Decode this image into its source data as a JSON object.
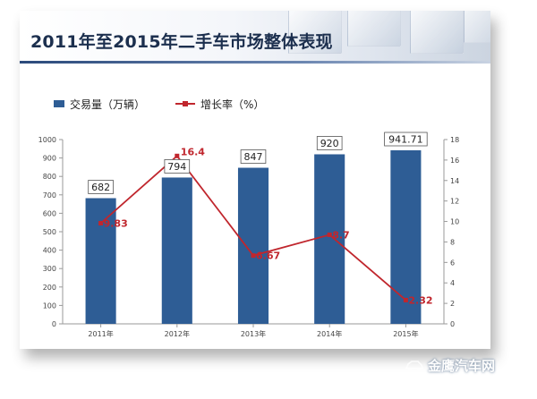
{
  "slide": {
    "title": "2011年至2015年二手车市场整体表现"
  },
  "legend": {
    "bar_label": "交易量（万辆）",
    "line_label": "增长率（%）"
  },
  "watermark": {
    "text": "金鹰汽车网",
    "icon": "car-logo-icon"
  },
  "colors": {
    "bar": "#2e5d95",
    "line": "#c0262d",
    "title": "#1c2f4e"
  },
  "chart_data": {
    "type": "bar",
    "categories": [
      "2011年",
      "2012年",
      "2013年",
      "2014年",
      "2015年"
    ],
    "series": [
      {
        "name": "交易量（万辆）",
        "type": "bar",
        "axis": "left",
        "values": [
          682,
          794,
          847,
          920,
          941.71
        ],
        "labels": [
          "682",
          "794",
          "847",
          "920",
          "941.71"
        ]
      },
      {
        "name": "增长率（%）",
        "type": "line",
        "axis": "right",
        "values": [
          9.83,
          16.4,
          6.67,
          8.7,
          2.32
        ],
        "labels": [
          "9.83",
          "16.4",
          "6.67",
          "8.7",
          "2.32"
        ]
      }
    ],
    "y_left": {
      "min": 0,
      "max": 1000,
      "ticks": [
        "0",
        "100",
        "200",
        "300",
        "400",
        "500",
        "600",
        "700",
        "800",
        "900",
        "1000"
      ]
    },
    "y_right": {
      "min": 0,
      "max": 18,
      "ticks": [
        "0",
        "2",
        "4",
        "6",
        "8",
        "10",
        "12",
        "14",
        "16",
        "18"
      ]
    },
    "grid": false,
    "legend_position": "top-left"
  }
}
